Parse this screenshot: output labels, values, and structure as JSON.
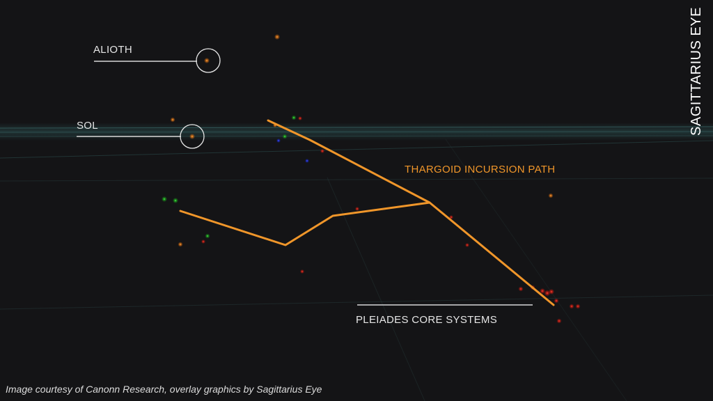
{
  "map": {
    "labels": {
      "alioth": "ALIOTH",
      "sol": "SOL",
      "path": "THARGOID INCURSION PATH",
      "pleiades": "PLEIADES CORE SYSTEMS"
    },
    "caption": "Image courtesy of Canonn Research, overlay graphics by Sagittarius Eye",
    "brand": "SAGITTARIUS EYE",
    "colors": {
      "background": "#141416",
      "path": "#f0962a",
      "label": "#e6e6e6",
      "grid": "#2a4a4a"
    }
  }
}
